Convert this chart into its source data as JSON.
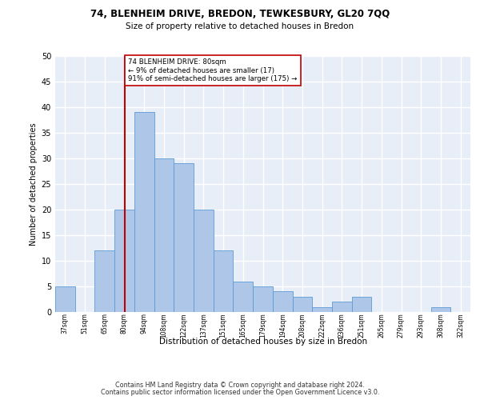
{
  "title1": "74, BLENHEIM DRIVE, BREDON, TEWKESBURY, GL20 7QQ",
  "title2": "Size of property relative to detached houses in Bredon",
  "xlabel": "Distribution of detached houses by size in Bredon",
  "ylabel": "Number of detached properties",
  "categories": [
    "37sqm",
    "51sqm",
    "65sqm",
    "80sqm",
    "94sqm",
    "108sqm",
    "122sqm",
    "137sqm",
    "151sqm",
    "165sqm",
    "179sqm",
    "194sqm",
    "208sqm",
    "222sqm",
    "236sqm",
    "251sqm",
    "265sqm",
    "279sqm",
    "293sqm",
    "308sqm",
    "322sqm"
  ],
  "values": [
    5,
    0,
    12,
    20,
    39,
    30,
    29,
    20,
    12,
    6,
    5,
    4,
    3,
    1,
    2,
    3,
    0,
    0,
    0,
    1,
    0
  ],
  "bar_color": "#aec6e8",
  "bar_edge_color": "#5b9bd5",
  "annotation_text": "74 BLENHEIM DRIVE: 80sqm\n← 9% of detached houses are smaller (17)\n91% of semi-detached houses are larger (175) →",
  "vline_x_index": 3,
  "vline_color": "#c00000",
  "annotation_box_color": "#ffffff",
  "annotation_box_edge_color": "#c00000",
  "footer1": "Contains HM Land Registry data © Crown copyright and database right 2024.",
  "footer2": "Contains public sector information licensed under the Open Government Licence v3.0.",
  "ylim": [
    0,
    50
  ],
  "yticks": [
    0,
    5,
    10,
    15,
    20,
    25,
    30,
    35,
    40,
    45,
    50
  ],
  "background_color": "#e8eef8",
  "grid_color": "#ffffff"
}
